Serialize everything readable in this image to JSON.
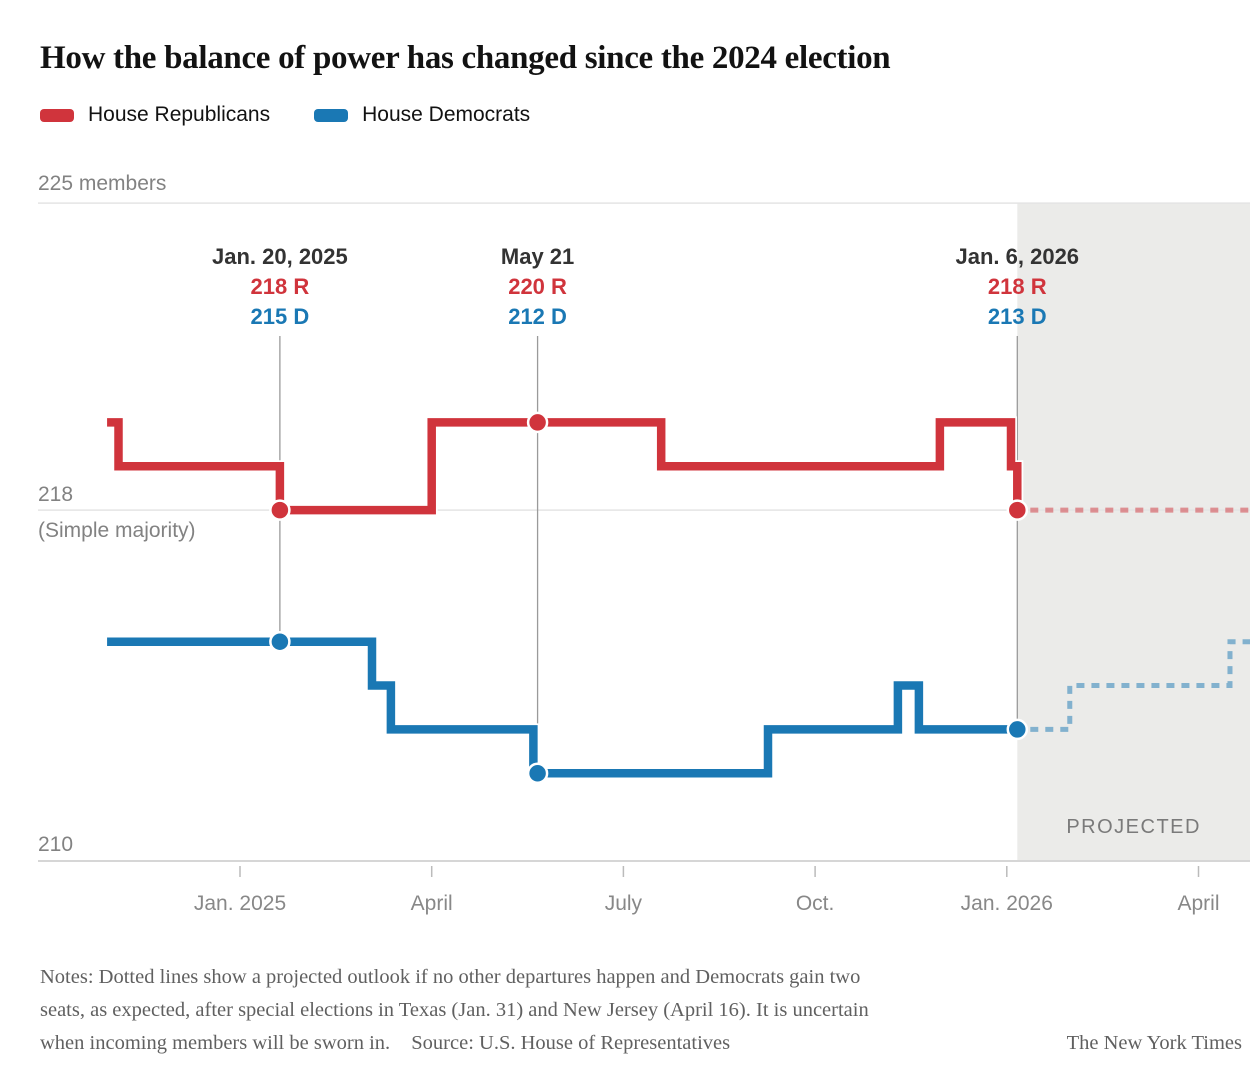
{
  "header": {
    "title": "How the balance of power has changed since the 2024 election"
  },
  "legend": {
    "items": [
      {
        "label": "House Republicans",
        "color": "#d0343c"
      },
      {
        "label": "House Democrats",
        "color": "#1a78b4"
      }
    ]
  },
  "y_axis": {
    "top_label": "225 members",
    "majority_label": "218",
    "majority_sublabel": "(Simple majority)",
    "bottom_label": "210"
  },
  "annotations": [
    {
      "heading": "Jan. 20, 2025",
      "r_label": "218 R",
      "d_label": "215 D",
      "date": "2025-01-20",
      "line_end_value": 215
    },
    {
      "heading": "May 21",
      "r_label": "220 R",
      "d_label": "212 D",
      "date": "2025-05-21",
      "line_end_value": 212
    },
    {
      "heading": "Jan. 6, 2026",
      "r_label": "218 R",
      "d_label": "213 D",
      "date": "2026-01-06",
      "line_end_value": 213
    }
  ],
  "projected": {
    "label": "PROJECTED"
  },
  "notes": {
    "line1": "Notes: Dotted lines show a projected outlook if no other departures happen and Democrats gain two",
    "line2": "seats, as expected, after special elections in Texas (Jan. 31) and New Jersey (April 16). It is uncertain",
    "line3": "when incoming members will be sworn in.",
    "source": "Source: U.S. House of Representatives",
    "credit": "The New York Times"
  },
  "colors": {
    "republican": "#d0343c",
    "democrat": "#1a78b4",
    "grid": "#e4e4e4",
    "axis_line": "#d6d6d6",
    "tick": "#bbbbbb",
    "annotation_line": "#9a9a9a",
    "projected_region": "#ebebe9"
  },
  "chart_data": {
    "type": "line",
    "step": true,
    "title": "How the balance of power has changed since the 2024 election",
    "ylabel": "members",
    "ylim": [
      210,
      225
    ],
    "gridlines": [
      225,
      218
    ],
    "baseline": 210,
    "x_start": "2024-10-29",
    "x_end": "2026-04-26",
    "projection_start": "2026-01-06",
    "x_ticks": [
      {
        "label": "Jan. 2025",
        "date": "2025-01-01"
      },
      {
        "label": "April",
        "date": "2025-04-01"
      },
      {
        "label": "July",
        "date": "2025-07-01"
      },
      {
        "label": "Oct.",
        "date": "2025-10-01"
      },
      {
        "label": "Jan. 2026",
        "date": "2026-01-01"
      },
      {
        "label": "April",
        "date": "2026-04-01"
      }
    ],
    "series": [
      {
        "name": "House Republicans",
        "color": "#d0343c",
        "steps": [
          {
            "date": "2024-10-29",
            "value": 220
          },
          {
            "date": "2024-11-04",
            "value": 219
          },
          {
            "date": "2025-01-20",
            "value": 218
          },
          {
            "date": "2025-04-01",
            "value": 220
          },
          {
            "date": "2025-07-19",
            "value": 219
          },
          {
            "date": "2025-11-30",
            "value": 220
          },
          {
            "date": "2026-01-03",
            "value": 219
          },
          {
            "date": "2026-01-06",
            "value": 218
          }
        ],
        "projection": [
          {
            "date": "2026-01-06",
            "value": 218
          }
        ],
        "markers": [
          {
            "date": "2025-01-20",
            "value": 218
          },
          {
            "date": "2025-05-21",
            "value": 220
          },
          {
            "date": "2026-01-06",
            "value": 218
          }
        ]
      },
      {
        "name": "House Democrats",
        "color": "#1a78b4",
        "steps": [
          {
            "date": "2024-10-29",
            "value": 215
          },
          {
            "date": "2025-03-03",
            "value": 214
          },
          {
            "date": "2025-03-12",
            "value": 213
          },
          {
            "date": "2025-05-19",
            "value": 212
          },
          {
            "date": "2025-09-09",
            "value": 213
          },
          {
            "date": "2025-11-10",
            "value": 214
          },
          {
            "date": "2025-11-20",
            "value": 213
          }
        ],
        "projection": [
          {
            "date": "2026-01-06",
            "value": 213
          },
          {
            "date": "2026-01-31",
            "value": 214
          },
          {
            "date": "2026-04-16",
            "value": 215
          }
        ],
        "markers": [
          {
            "date": "2025-01-20",
            "value": 215
          },
          {
            "date": "2025-05-21",
            "value": 212
          },
          {
            "date": "2026-01-06",
            "value": 213
          }
        ]
      }
    ]
  }
}
